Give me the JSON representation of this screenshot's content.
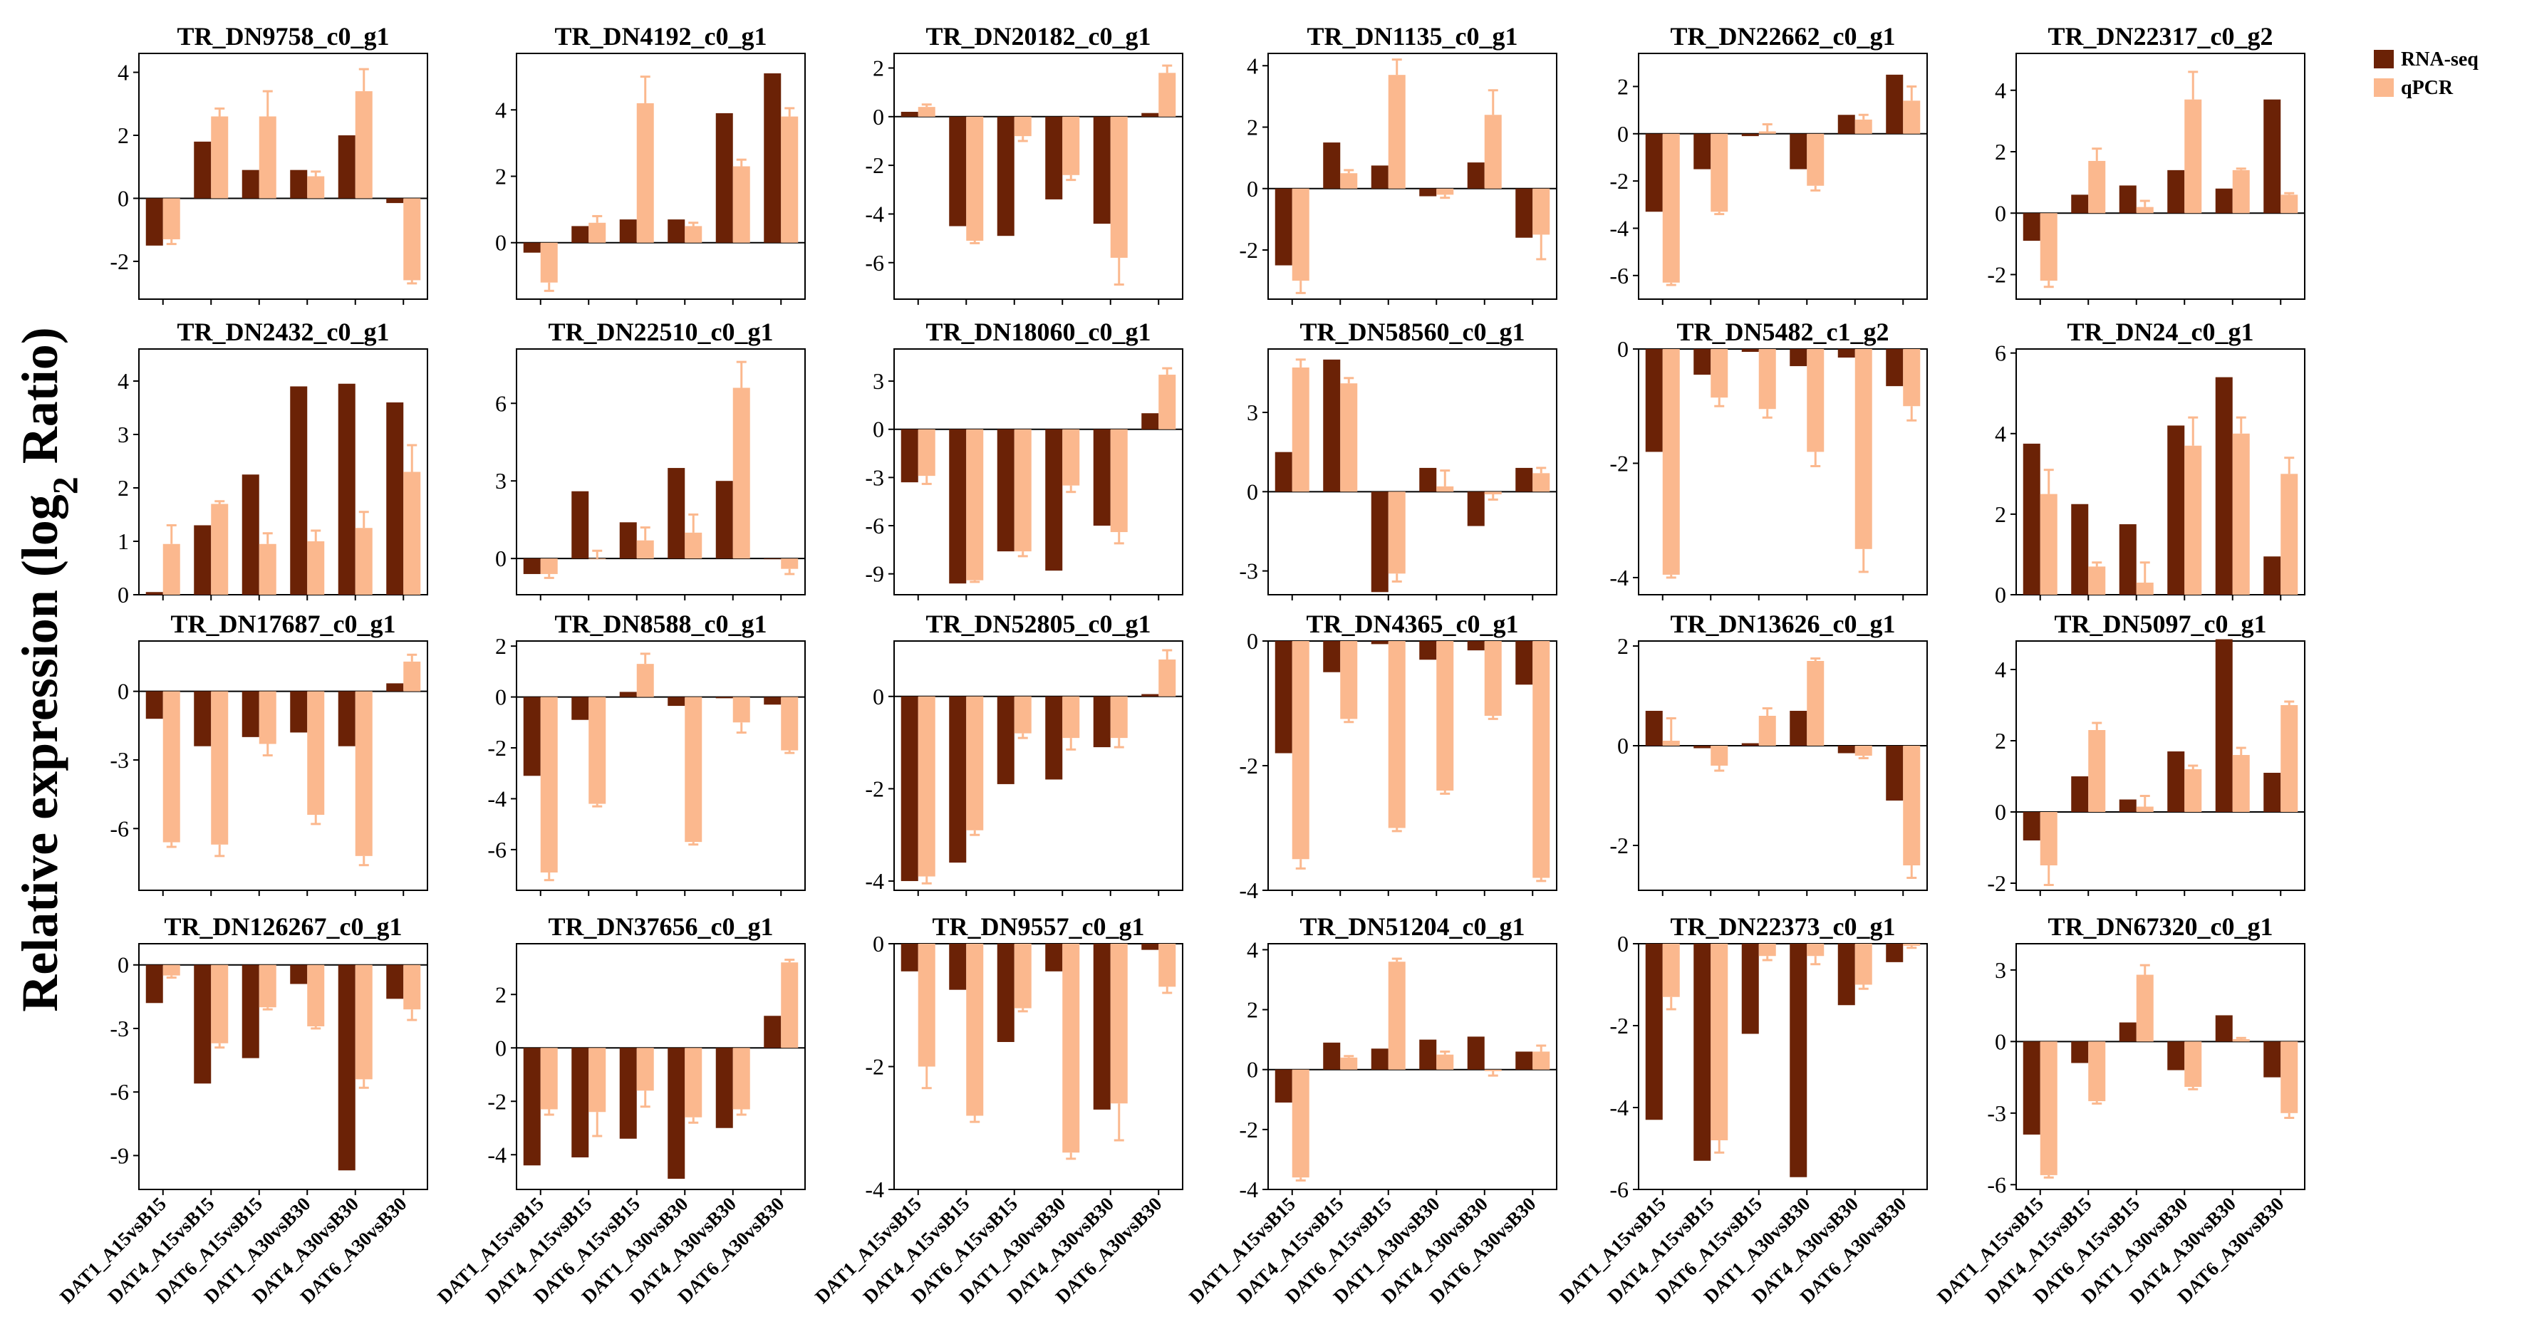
{
  "figure": {
    "ylabel_main": "Relative expression (log",
    "ylabel_sub": "2",
    "ylabel_end": " Ratio)"
  },
  "legend": {
    "items": [
      {
        "label": "RNA-seq",
        "color": "#6b2206"
      },
      {
        "label": "qPCR",
        "color": "#fbb88e"
      }
    ]
  },
  "colors": {
    "rnaseq": "#6b2206",
    "qpcr": "#fbb88e",
    "axis": "#000000"
  },
  "chart_data": {
    "type": "bar",
    "categories": [
      "DAT1_A15vsB15",
      "DAT4_A15vsB15",
      "DAT6_A15vsB15",
      "DAT1_A30vsB30",
      "DAT4_A30vsB30",
      "DAT6_A30vsB30"
    ],
    "series_names": [
      "RNA-seq",
      "qPCR"
    ],
    "panels": [
      {
        "title": "TR_DN9758_c0_g1",
        "ylim": [
          -3.2,
          4.6
        ],
        "ticks": [
          -2,
          0,
          2,
          4
        ],
        "ticklabels": [
          "-2",
          "0",
          "2",
          "4"
        ],
        "rnaseq": [
          -1.5,
          1.8,
          0.9,
          0.9,
          2.0,
          -0.15
        ],
        "qpcr": [
          -1.3,
          2.6,
          2.6,
          0.7,
          3.4,
          -2.6
        ],
        "qerr": [
          0.15,
          0.25,
          0.8,
          0.15,
          0.7,
          0.1
        ]
      },
      {
        "title": "TR_DN4192_c0_g1",
        "ylim": [
          -1.7,
          5.7
        ],
        "ticks": [
          0,
          2,
          4
        ],
        "ticklabels": [
          "0",
          "2",
          "4"
        ],
        "rnaseq": [
          -0.3,
          0.5,
          0.7,
          0.7,
          3.9,
          5.1
        ],
        "qpcr": [
          -1.2,
          0.6,
          4.2,
          0.5,
          2.3,
          3.8
        ],
        "qerr": [
          0.25,
          0.2,
          0.8,
          0.1,
          0.2,
          0.25
        ]
      },
      {
        "title": "TR_DN20182_c0_g1",
        "ylim": [
          -7.5,
          2.6
        ],
        "ticks": [
          -6,
          -4,
          -2,
          0,
          2
        ],
        "ticklabels": [
          "-6",
          "-4",
          "-2",
          "0",
          "2"
        ],
        "rnaseq": [
          0.2,
          -4.5,
          -4.9,
          -3.4,
          -4.4,
          0.15
        ],
        "qpcr": [
          0.4,
          -5.1,
          -0.8,
          -2.4,
          -5.8,
          1.8
        ],
        "qerr": [
          0.1,
          0.1,
          0.2,
          0.2,
          1.1,
          0.3
        ]
      },
      {
        "title": "TR_DN1135_c0_g1",
        "ylim": [
          -3.6,
          4.4
        ],
        "ticks": [
          -2,
          0,
          2,
          4
        ],
        "ticklabels": [
          "-2",
          "0",
          "2",
          "4"
        ],
        "rnaseq": [
          -2.5,
          1.5,
          0.75,
          -0.25,
          0.85,
          -1.6
        ],
        "qpcr": [
          -3.0,
          0.5,
          3.7,
          -0.2,
          2.4,
          -1.5
        ],
        "qerr": [
          0.4,
          0.1,
          0.5,
          0.1,
          0.8,
          0.8
        ]
      },
      {
        "title": "TR_DN22662_c0_g1",
        "ylim": [
          -7.0,
          3.4
        ],
        "ticks": [
          -6,
          -4,
          -2,
          0,
          2
        ],
        "ticklabels": [
          "-6",
          "-4",
          "-2",
          "0",
          "2"
        ],
        "rnaseq": [
          -3.3,
          -1.5,
          -0.1,
          -1.5,
          0.8,
          2.5
        ],
        "qpcr": [
          -6.3,
          -3.3,
          0.1,
          -2.2,
          0.6,
          1.4
        ],
        "qerr": [
          0.1,
          0.1,
          0.3,
          0.2,
          0.2,
          0.6
        ]
      },
      {
        "title": "TR_DN22317_c0_g2",
        "ylim": [
          -2.8,
          5.2
        ],
        "ticks": [
          -2,
          0,
          2,
          4
        ],
        "ticklabels": [
          "-2",
          "0",
          "2",
          "4"
        ],
        "rnaseq": [
          -0.9,
          0.6,
          0.9,
          1.4,
          0.8,
          3.7
        ],
        "qpcr": [
          -2.2,
          1.7,
          0.2,
          3.7,
          1.4,
          0.6
        ],
        "qerr": [
          0.2,
          0.4,
          0.2,
          0.9,
          0.05,
          0.05
        ]
      },
      {
        "title": "TR_DN2432_c0_g1",
        "ylim": [
          0,
          4.6
        ],
        "ticks": [
          0,
          1,
          2,
          3,
          4
        ],
        "ticklabels": [
          "0",
          "1",
          "2",
          "3",
          "4"
        ],
        "rnaseq": [
          0.05,
          1.3,
          2.25,
          3.9,
          3.95,
          3.6
        ],
        "qpcr": [
          0.95,
          1.7,
          0.95,
          1.0,
          1.25,
          2.3
        ],
        "qerr": [
          0.35,
          0.05,
          0.2,
          0.2,
          0.3,
          0.5
        ]
      },
      {
        "title": "TR_DN22510_c0_g1",
        "ylim": [
          -1.4,
          8.1
        ],
        "ticks": [
          0,
          3,
          6
        ],
        "ticklabels": [
          "0",
          "3",
          "6"
        ],
        "rnaseq": [
          -0.6,
          2.6,
          1.4,
          3.5,
          3.0,
          0
        ],
        "qpcr": [
          -0.6,
          0,
          0.7,
          1.0,
          6.6,
          -0.4
        ],
        "qerr": [
          0.15,
          0.3,
          0.5,
          0.7,
          1.0,
          0.2
        ]
      },
      {
        "title": "TR_DN18060_c0_g1",
        "ylim": [
          -10.3,
          5.0
        ],
        "ticks": [
          -9,
          -6,
          -3,
          0,
          3
        ],
        "ticklabels": [
          "-9",
          "-6",
          "-3",
          "0",
          "3"
        ],
        "rnaseq": [
          -3.3,
          -9.6,
          -7.6,
          -8.8,
          -6.0,
          1.0
        ],
        "qpcr": [
          -2.9,
          -9.4,
          -7.6,
          -3.5,
          -6.4,
          3.4
        ],
        "qerr": [
          0.5,
          0.1,
          0.3,
          0.4,
          0.7,
          0.4
        ]
      },
      {
        "title": "TR_DN58560_c0_g1",
        "ylim": [
          -3.9,
          5.4
        ],
        "ticks": [
          -3,
          0,
          3
        ],
        "ticklabels": [
          "-3",
          "0",
          "3"
        ],
        "rnaseq": [
          1.5,
          5.0,
          -3.8,
          0.9,
          -1.3,
          0.9
        ],
        "qpcr": [
          4.7,
          4.1,
          -3.1,
          0.2,
          -0.1,
          0.7
        ],
        "qerr": [
          0.3,
          0.2,
          0.3,
          0.6,
          0.2,
          0.2
        ]
      },
      {
        "title": "TR_DN5482_c1_g2",
        "ylim": [
          -4.3,
          0
        ],
        "ticks": [
          -4,
          -2,
          0
        ],
        "ticklabels": [
          "-4",
          "-2",
          "0"
        ],
        "rnaseq": [
          -1.8,
          -0.45,
          -0.05,
          -0.3,
          -0.15,
          -0.65
        ],
        "qpcr": [
          -3.95,
          -0.85,
          -1.05,
          -1.8,
          -3.5,
          -1.0
        ],
        "qerr": [
          0.05,
          0.15,
          0.15,
          0.25,
          0.4,
          0.25
        ]
      },
      {
        "title": "TR_DN24_c0_g1",
        "ylim": [
          0,
          6.1
        ],
        "ticks": [
          0,
          2,
          4,
          6
        ],
        "ticklabels": [
          "0",
          "2",
          "4",
          "6"
        ],
        "rnaseq": [
          3.75,
          2.25,
          1.75,
          4.2,
          5.4,
          0.95
        ],
        "qpcr": [
          2.5,
          0.7,
          0.3,
          3.7,
          4.0,
          3.0
        ],
        "qerr": [
          0.6,
          0.1,
          0.5,
          0.7,
          0.4,
          0.4
        ]
      },
      {
        "title": "TR_DN17687_c0_g1",
        "ylim": [
          -8.7,
          2.2
        ],
        "ticks": [
          -6,
          -3,
          0
        ],
        "ticklabels": [
          "-6",
          "-3",
          "0"
        ],
        "rnaseq": [
          -1.2,
          -2.4,
          -2.0,
          -1.8,
          -2.4,
          0.35
        ],
        "qpcr": [
          -6.6,
          -6.7,
          -2.3,
          -5.4,
          -7.2,
          1.3
        ],
        "qerr": [
          0.2,
          0.5,
          0.5,
          0.4,
          0.4,
          0.3
        ]
      },
      {
        "title": "TR_DN8588_c0_g1",
        "ylim": [
          -7.6,
          2.2
        ],
        "ticks": [
          -6,
          -4,
          -2,
          0,
          2
        ],
        "ticklabels": [
          "-6",
          "-4",
          "-2",
          "0",
          "2"
        ],
        "rnaseq": [
          -3.1,
          -0.9,
          0.2,
          -0.35,
          -0.05,
          -0.3
        ],
        "qpcr": [
          -6.9,
          -4.2,
          1.3,
          -5.7,
          -1.0,
          -2.1
        ],
        "qerr": [
          0.3,
          0.1,
          0.4,
          0.1,
          0.4,
          0.1
        ]
      },
      {
        "title": "TR_DN52805_c0_g1",
        "ylim": [
          -4.2,
          1.2
        ],
        "ticks": [
          -4,
          -2,
          0
        ],
        "ticklabels": [
          "-4",
          "-2",
          "0"
        ],
        "rnaseq": [
          -4.0,
          -3.6,
          -1.9,
          -1.8,
          -1.1,
          0.05
        ],
        "qpcr": [
          -3.9,
          -2.9,
          -0.8,
          -0.9,
          -0.9,
          0.8
        ],
        "qerr": [
          0.15,
          0.1,
          0.1,
          0.25,
          0.2,
          0.2
        ]
      },
      {
        "title": "TR_DN4365_c0_g1",
        "ylim": [
          -4.0,
          0
        ],
        "ticks": [
          -4,
          -2,
          0
        ],
        "ticklabels": [
          "-4",
          "-2",
          "0"
        ],
        "rnaseq": [
          -1.8,
          -0.5,
          -0.05,
          -0.3,
          -0.15,
          -0.7
        ],
        "qpcr": [
          -3.5,
          -1.25,
          -3.0,
          -2.4,
          -1.2,
          -3.8
        ],
        "qerr": [
          0.15,
          0.05,
          0.05,
          0.05,
          0.05,
          0.05
        ]
      },
      {
        "title": "TR_DN13626_c0_g1",
        "ylim": [
          -2.9,
          2.1
        ],
        "ticks": [
          -2,
          0,
          2
        ],
        "ticklabels": [
          "-2",
          "0",
          "2"
        ],
        "rnaseq": [
          0.7,
          -0.05,
          0.05,
          0.7,
          -0.15,
          -1.1
        ],
        "qpcr": [
          0.1,
          -0.4,
          0.6,
          1.7,
          -0.2,
          -2.4
        ],
        "qerr": [
          0.45,
          0.1,
          0.15,
          0.05,
          0.05,
          0.25
        ]
      },
      {
        "title": "TR_DN5097_c0_g1",
        "ylim": [
          -2.2,
          4.8
        ],
        "ticks": [
          -2,
          0,
          2,
          4
        ],
        "ticklabels": [
          "-2",
          "0",
          "2",
          "4"
        ],
        "rnaseq": [
          -0.8,
          1.0,
          0.35,
          1.7,
          4.85,
          1.1
        ],
        "qpcr": [
          -1.5,
          2.3,
          0.15,
          1.2,
          1.6,
          3.0
        ],
        "qerr": [
          0.55,
          0.2,
          0.3,
          0.1,
          0.2,
          0.1
        ]
      },
      {
        "title": "TR_DN126267_c0_g1",
        "ylim": [
          -10.6,
          1.0
        ],
        "ticks": [
          -9,
          -6,
          -3,
          0
        ],
        "ticklabels": [
          "-9",
          "-6",
          "-3",
          "0"
        ],
        "rnaseq": [
          -1.8,
          -5.6,
          -4.4,
          -0.9,
          -9.7,
          -1.6
        ],
        "qpcr": [
          -0.5,
          -3.7,
          -2.0,
          -2.9,
          -5.4,
          -2.1
        ],
        "qerr": [
          0.1,
          0.2,
          0.1,
          0.1,
          0.4,
          0.5
        ]
      },
      {
        "title": "TR_DN37656_c0_g1",
        "ylim": [
          -5.3,
          3.9
        ],
        "ticks": [
          -4,
          -2,
          0,
          2
        ],
        "ticklabels": [
          "-4",
          "-2",
          "0",
          "2"
        ],
        "rnaseq": [
          -4.4,
          -4.1,
          -3.4,
          -4.9,
          -3.0,
          1.2
        ],
        "qpcr": [
          -2.3,
          -2.4,
          -1.6,
          -2.6,
          -2.3,
          3.2
        ],
        "qerr": [
          0.2,
          0.9,
          0.6,
          0.2,
          0.2,
          0.1
        ]
      },
      {
        "title": "TR_DN9557_c0_g1",
        "ylim": [
          -4.0,
          0
        ],
        "ticks": [
          -4,
          -2,
          0
        ],
        "ticklabels": [
          "-4",
          "-2",
          "0"
        ],
        "rnaseq": [
          -0.45,
          -0.75,
          -1.6,
          -0.45,
          -2.7,
          -0.1
        ],
        "qpcr": [
          -2.0,
          -2.8,
          -1.05,
          -3.4,
          -2.6,
          -0.7
        ],
        "qerr": [
          0.35,
          0.1,
          0.05,
          0.1,
          0.6,
          0.1
        ]
      },
      {
        "title": "TR_DN51204_c0_g1",
        "ylim": [
          -4.0,
          4.2
        ],
        "ticks": [
          -4,
          -2,
          0,
          2,
          4
        ],
        "ticklabels": [
          "-4",
          "-2",
          "0",
          "2",
          "4"
        ],
        "rnaseq": [
          -1.1,
          0.9,
          0.7,
          1.0,
          1.1,
          0.6
        ],
        "qpcr": [
          -3.6,
          0.4,
          3.6,
          0.5,
          -0.05,
          0.6
        ],
        "qerr": [
          0.1,
          0.05,
          0.1,
          0.1,
          0.15,
          0.2
        ]
      },
      {
        "title": "TR_DN22373_c0_g1",
        "ylim": [
          -6.0,
          0
        ],
        "ticks": [
          -6,
          -4,
          -2,
          0
        ],
        "ticklabels": [
          "-6",
          "-4",
          "-2",
          "0"
        ],
        "rnaseq": [
          -4.3,
          -5.3,
          -2.2,
          -5.7,
          -1.5,
          -0.45
        ],
        "qpcr": [
          -1.3,
          -4.8,
          -0.3,
          -0.3,
          -1.0,
          -0.05
        ],
        "qerr": [
          0.3,
          0.3,
          0.1,
          0.2,
          0.1,
          0.05
        ]
      },
      {
        "title": "TR_DN67320_c0_g1",
        "ylim": [
          -6.2,
          4.1
        ],
        "ticks": [
          -6,
          -3,
          0,
          3
        ],
        "ticklabels": [
          "-6",
          "-3",
          "0",
          "3"
        ],
        "rnaseq": [
          -3.9,
          -0.9,
          0.8,
          -1.2,
          1.1,
          -1.5
        ],
        "qpcr": [
          -5.6,
          -2.5,
          2.8,
          -1.9,
          0.1,
          -3.0
        ],
        "qerr": [
          0.1,
          0.1,
          0.4,
          0.1,
          0.05,
          0.2
        ]
      }
    ]
  }
}
